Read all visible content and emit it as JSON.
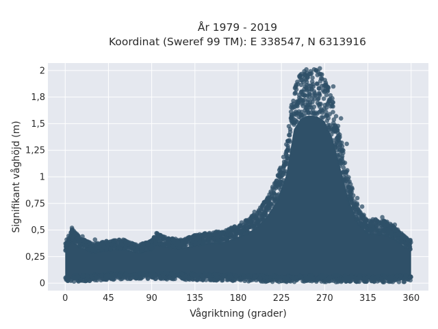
{
  "chart_data": {
    "type": "scatter",
    "title": "År 1979 - 2019",
    "subtitle": "Koordinat (Sweref 99 TM): E 338547, N 6313916",
    "xlabel": "Vågriktning (grader)",
    "ylabel": "Signifikant våghöjd (m)",
    "xlim": [
      -18,
      378
    ],
    "ylim": [
      -0.07,
      2.07
    ],
    "x_ticks": [
      0,
      45,
      90,
      135,
      180,
      225,
      270,
      315,
      360
    ],
    "x_tick_labels": [
      "0",
      "45",
      "90",
      "135",
      "180",
      "225",
      "270",
      "315",
      "360"
    ],
    "y_ticks": [
      0,
      0.25,
      0.5,
      0.75,
      1,
      1.25,
      1.5,
      1.75,
      2
    ],
    "y_tick_labels": [
      "0",
      "0,25",
      "0,5",
      "0,75",
      "1",
      "1,25",
      "1,5",
      "1,8",
      "2"
    ],
    "grid": true,
    "background_color": "#e5e8ef",
    "marker_color": "#2f5068",
    "marker_opacity": 0.75,
    "series": [
      {
        "envelope_upper": [
          {
            "x": 0,
            "y": 0.38
          },
          {
            "x": 7,
            "y": 0.52
          },
          {
            "x": 15,
            "y": 0.43
          },
          {
            "x": 30,
            "y": 0.37
          },
          {
            "x": 45,
            "y": 0.4
          },
          {
            "x": 60,
            "y": 0.41
          },
          {
            "x": 75,
            "y": 0.36
          },
          {
            "x": 90,
            "y": 0.4
          },
          {
            "x": 95,
            "y": 0.47
          },
          {
            "x": 105,
            "y": 0.43
          },
          {
            "x": 120,
            "y": 0.41
          },
          {
            "x": 135,
            "y": 0.45
          },
          {
            "x": 150,
            "y": 0.48
          },
          {
            "x": 165,
            "y": 0.49
          },
          {
            "x": 175,
            "y": 0.53
          },
          {
            "x": 190,
            "y": 0.6
          },
          {
            "x": 200,
            "y": 0.68
          },
          {
            "x": 210,
            "y": 0.8
          },
          {
            "x": 220,
            "y": 0.98
          },
          {
            "x": 230,
            "y": 1.3
          },
          {
            "x": 238,
            "y": 1.85
          },
          {
            "x": 245,
            "y": 1.98
          },
          {
            "x": 253,
            "y": 2.02
          },
          {
            "x": 262,
            "y": 2.01
          },
          {
            "x": 270,
            "y": 1.95
          },
          {
            "x": 278,
            "y": 1.75
          },
          {
            "x": 285,
            "y": 1.45
          },
          {
            "x": 295,
            "y": 1.0
          },
          {
            "x": 305,
            "y": 0.72
          },
          {
            "x": 315,
            "y": 0.6
          },
          {
            "x": 325,
            "y": 0.6
          },
          {
            "x": 335,
            "y": 0.58
          },
          {
            "x": 345,
            "y": 0.52
          },
          {
            "x": 352,
            "y": 0.45
          },
          {
            "x": 360,
            "y": 0.4
          }
        ],
        "envelope_lower": [
          {
            "x": 0,
            "y": 0.01
          },
          {
            "x": 45,
            "y": 0.03
          },
          {
            "x": 90,
            "y": 0.04
          },
          {
            "x": 135,
            "y": 0.03
          },
          {
            "x": 180,
            "y": 0.02
          },
          {
            "x": 225,
            "y": 0.01
          },
          {
            "x": 270,
            "y": 0.01
          },
          {
            "x": 315,
            "y": 0.01
          },
          {
            "x": 360,
            "y": 0.01
          }
        ],
        "outliers": [
          {
            "x": 7,
            "y": 0.52
          },
          {
            "x": 18,
            "y": 0.44
          },
          {
            "x": 31,
            "y": 0.41
          },
          {
            "x": 95,
            "y": 0.47
          },
          {
            "x": 100,
            "y": 0.44
          },
          {
            "x": 150,
            "y": 0.45
          },
          {
            "x": 163,
            "y": 0.48
          },
          {
            "x": 176,
            "y": 0.53
          },
          {
            "x": 193,
            "y": 0.58
          },
          {
            "x": 197,
            "y": 0.67
          },
          {
            "x": 203,
            "y": 0.71
          },
          {
            "x": 207,
            "y": 0.76
          },
          {
            "x": 251,
            "y": 2.01
          },
          {
            "x": 259,
            "y": 2.01
          },
          {
            "x": 265,
            "y": 2.02
          },
          {
            "x": 279,
            "y": 1.85
          },
          {
            "x": 287,
            "y": 1.55
          },
          {
            "x": 293,
            "y": 1.31
          },
          {
            "x": 304,
            "y": 0.8
          },
          {
            "x": 309,
            "y": 0.72
          },
          {
            "x": 323,
            "y": 0.6
          },
          {
            "x": 330,
            "y": 0.62
          },
          {
            "x": 343,
            "y": 0.55
          },
          {
            "x": 352,
            "y": 0.44
          }
        ]
      }
    ]
  }
}
